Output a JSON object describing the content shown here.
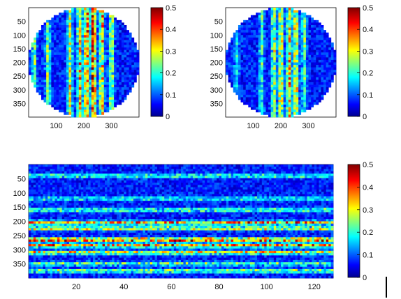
{
  "chart_data": [
    {
      "type": "heatmap",
      "title": "",
      "xlabel": "",
      "ylabel": "",
      "y_ticks": [
        50,
        100,
        150,
        200,
        250,
        300,
        350
      ],
      "x_ticks": [
        100,
        200,
        300
      ],
      "xlim": [
        0,
        400
      ],
      "ylim": [
        0,
        400
      ],
      "y_reversed": true,
      "mask": "circular",
      "stripes_x": [
        20,
        70,
        150,
        185,
        210,
        235,
        265,
        300
      ],
      "stripe_strength": [
        0.22,
        0.2,
        0.26,
        0.3,
        0.38,
        0.42,
        0.32,
        0.24
      ],
      "colorbar": {
        "min": 0,
        "max": 0.5,
        "ticks": [
          "0",
          "0.1",
          "0.2",
          "0.3",
          "0.4",
          "0.5"
        ],
        "colormap": "jet"
      }
    },
    {
      "type": "heatmap",
      "title": "",
      "xlabel": "",
      "ylabel": "",
      "y_ticks": [
        50,
        100,
        150,
        200,
        250,
        300,
        350
      ],
      "x_ticks": [
        100,
        200,
        300
      ],
      "xlim": [
        0,
        400
      ],
      "ylim": [
        0,
        400
      ],
      "y_reversed": true,
      "mask": "circular",
      "stripes_x": [
        40,
        130,
        175,
        200,
        230,
        255,
        285
      ],
      "stripe_strength": [
        0.12,
        0.16,
        0.24,
        0.3,
        0.32,
        0.3,
        0.18
      ],
      "colorbar": {
        "min": 0,
        "max": 0.5,
        "ticks": [
          "0",
          "0.1",
          "0.2",
          "0.3",
          "0.4",
          "0.5"
        ],
        "colormap": "jet"
      }
    },
    {
      "type": "heatmap",
      "title": "",
      "xlabel": "",
      "ylabel": "",
      "y_ticks": [
        50,
        100,
        150,
        200,
        250,
        300,
        350
      ],
      "x_ticks": [
        20,
        40,
        60,
        80,
        100,
        120
      ],
      "xlim": [
        0,
        128
      ],
      "ylim": [
        0,
        400
      ],
      "y_reversed": true,
      "mask": "none",
      "stripes_y": [
        40,
        120,
        160,
        205,
        225,
        265,
        285,
        310,
        350,
        375
      ],
      "stripe_strength": [
        0.18,
        0.16,
        0.2,
        0.34,
        0.28,
        0.42,
        0.34,
        0.3,
        0.2,
        0.22
      ],
      "colorbar": {
        "min": 0,
        "max": 0.5,
        "ticks": [
          "0",
          "0.1",
          "0.2",
          "0.3",
          "0.4",
          "0.5"
        ],
        "colormap": "jet"
      }
    }
  ]
}
